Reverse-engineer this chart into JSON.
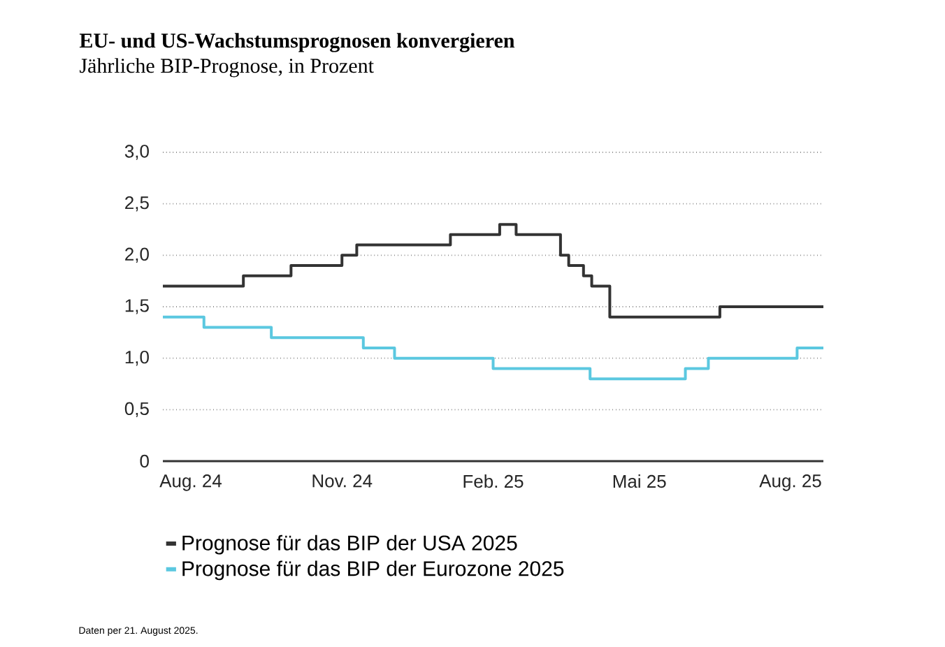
{
  "chart_data": {
    "type": "step",
    "title": "EU- und US-Wachstumsprognosen konvergieren",
    "subtitle": "Jährliche BIP-Prognose, in Prozent",
    "annotations": [
      "Daten per 21. August 2025."
    ],
    "xlim": [
      "2024-07-15",
      "2025-08-21"
    ],
    "xticks": [
      {
        "value": "2024-08-01",
        "label": "Aug. 24"
      },
      {
        "value": "2024-11-01",
        "label": "Nov. 24"
      },
      {
        "value": "2025-02-01",
        "label": "Feb. 25"
      },
      {
        "value": "2025-05-01",
        "label": "Mai 25"
      },
      {
        "value": "2025-08-01",
        "label": "Aug. 25"
      }
    ],
    "ylim": [
      0,
      3
    ],
    "yticks": [
      0,
      {
        "value": 0.5,
        "label": "0,5"
      },
      {
        "value": 1,
        "label": "1,0"
      },
      {
        "value": 1.5,
        "label": "1,5"
      },
      {
        "value": 2,
        "label": "2,0"
      },
      {
        "value": 2.5,
        "label": "2,5"
      },
      {
        "value": 3,
        "label": "3,0"
      }
    ],
    "grid": "y",
    "legend": "bottom left",
    "marker": "none",
    "line_style": "solid",
    "series": [
      {
        "name": "Prognose für das BIP der USA 2025",
        "color": "#333333",
        "x": [
          "2024-07-15",
          "2024-09-02",
          "2024-10-01",
          "2024-11-01",
          "2024-11-10",
          "2025-01-06",
          "2025-02-05",
          "2025-02-15",
          "2025-03-14",
          "2025-03-19",
          "2025-03-28",
          "2025-04-02",
          "2025-04-13",
          "2025-06-19",
          "2025-08-21"
        ],
        "values": [
          1.7,
          1.8,
          1.9,
          2.0,
          2.1,
          2.2,
          2.3,
          2.2,
          2.0,
          1.9,
          1.8,
          1.7,
          1.4,
          1.5,
          1.5
        ]
      },
      {
        "name": "Prognose für das BIP der Eurozone 2025",
        "color": "#5bc8e0",
        "x": [
          "2024-07-15",
          "2024-08-09",
          "2024-09-19",
          "2024-11-14",
          "2024-12-03",
          "2025-02-01",
          "2025-04-01",
          "2025-05-29",
          "2025-06-12",
          "2025-08-05",
          "2025-08-21"
        ],
        "values": [
          1.4,
          1.3,
          1.2,
          1.1,
          1.0,
          0.9,
          0.8,
          0.9,
          1.0,
          1.1,
          1.1
        ]
      }
    ]
  }
}
